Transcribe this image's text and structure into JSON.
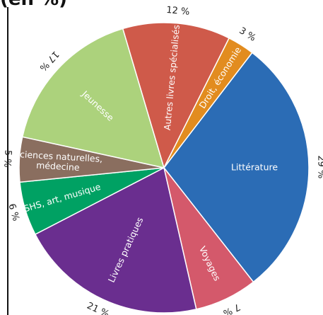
{
  "title_fragment": "(en %)",
  "chart_data": {
    "type": "pie",
    "title": "",
    "slices": [
      {
        "label": "Littérature",
        "value": 29,
        "pct_label": "29 %",
        "color": "#2b6cb5"
      },
      {
        "label": "Voyages",
        "value": 7,
        "pct_label": "7 %",
        "color": "#d4596b"
      },
      {
        "label": "Livres pratiques",
        "value": 21,
        "pct_label": "21 %",
        "color": "#6a2e8f"
      },
      {
        "label": "SHS, art, musique",
        "value": 6,
        "pct_label": "6 %",
        "color": "#00a163"
      },
      {
        "label": "Sciences naturelles, médecine",
        "label_lines": [
          "Sciences naturelles,",
          "médecine"
        ],
        "value": 5,
        "pct_label": "5 %",
        "color": "#8a6e5f"
      },
      {
        "label": "Jeunesse",
        "value": 17,
        "pct_label": "17 %",
        "color": "#acd27c"
      },
      {
        "label": "Autres livres spécialisés",
        "value": 12,
        "pct_label": "12 %",
        "color": "#cf5a4a"
      },
      {
        "label": "Droit, économie",
        "value": 3,
        "pct_label": "3 %",
        "color": "#e28c1f"
      }
    ],
    "start_angle_deg": 37.5,
    "direction": "clockwise",
    "legend": "none"
  }
}
